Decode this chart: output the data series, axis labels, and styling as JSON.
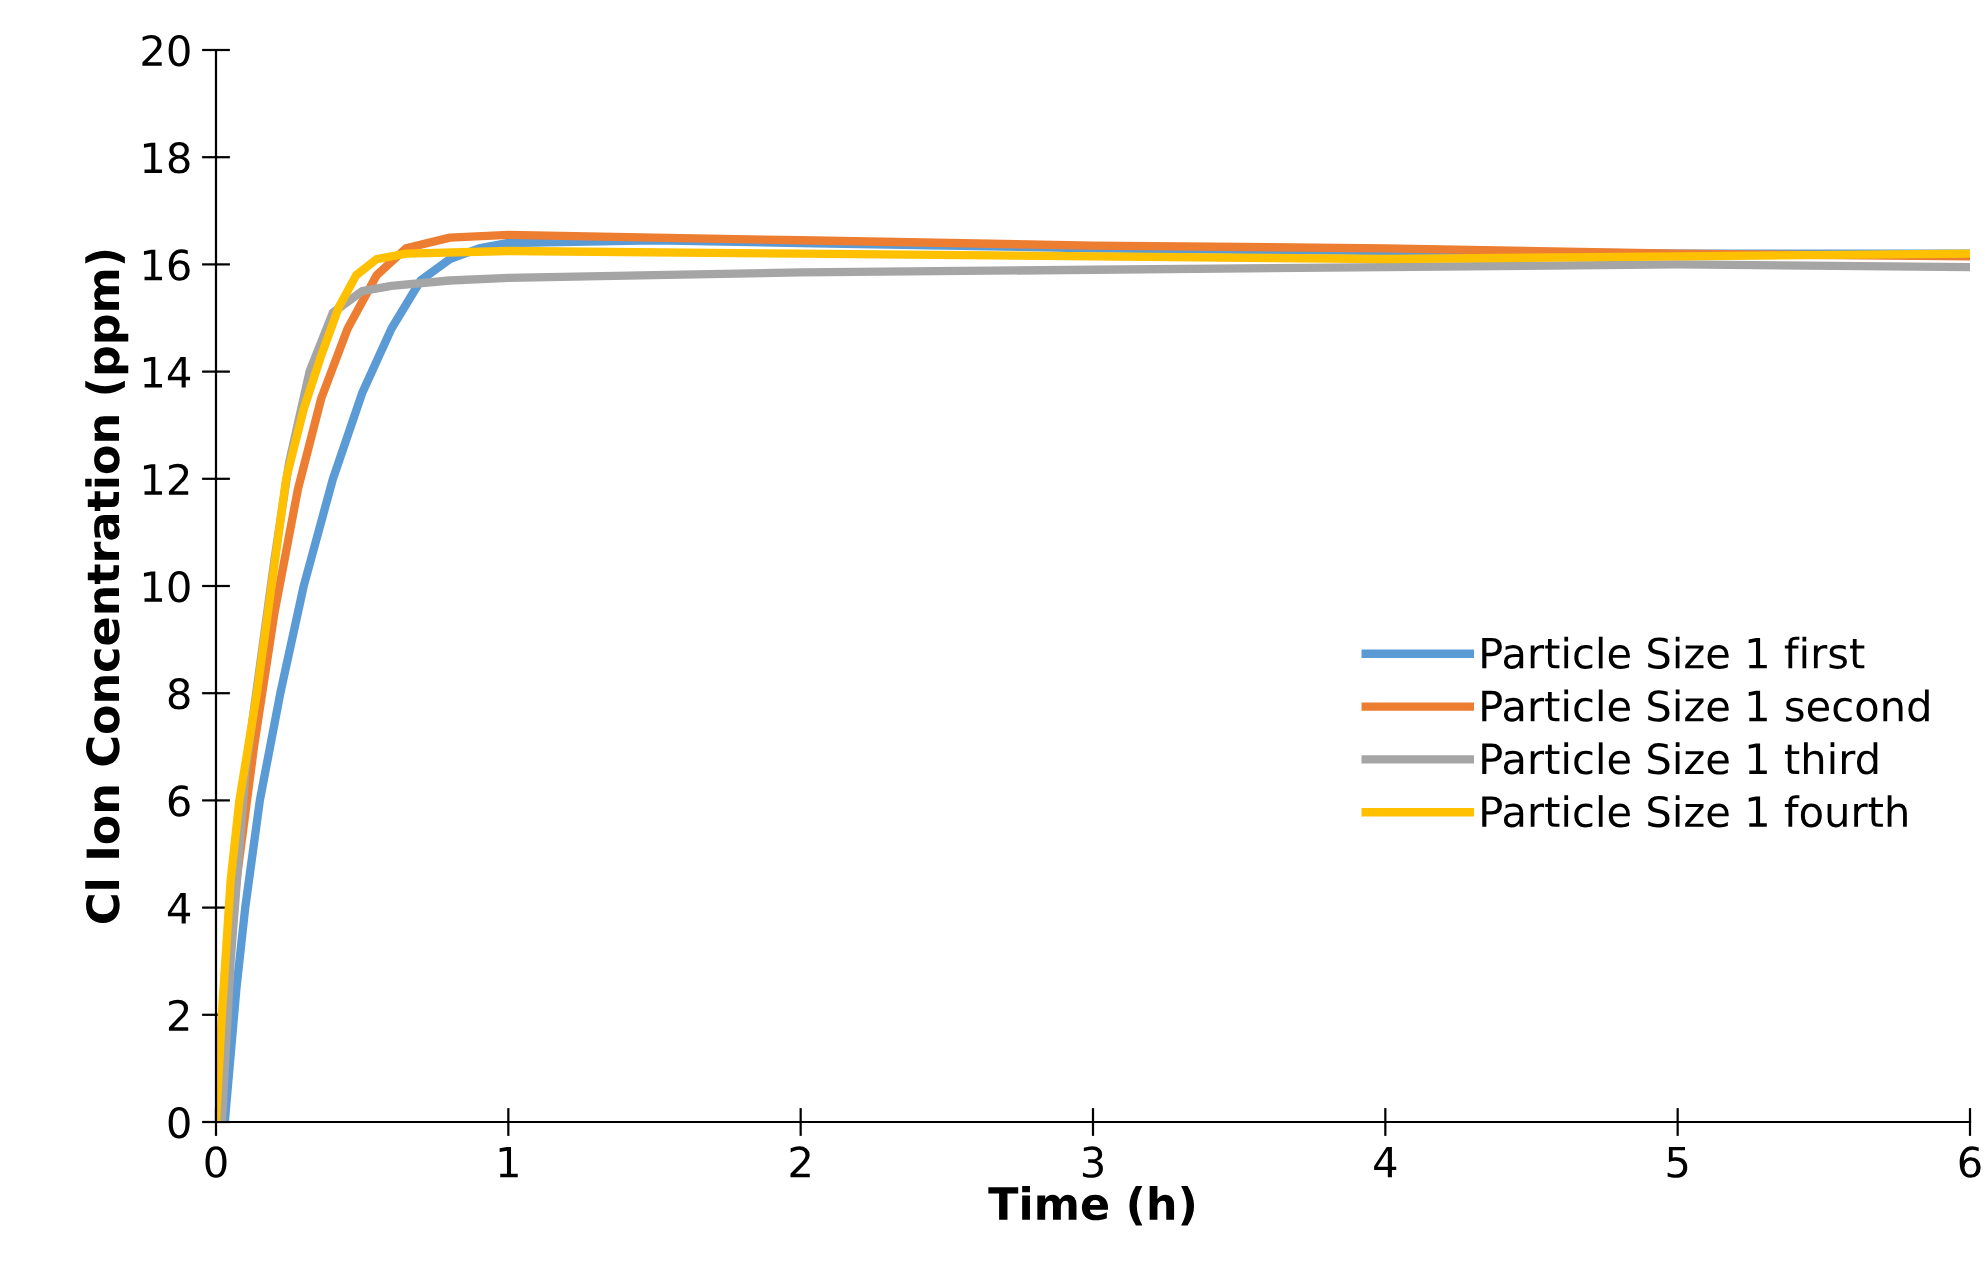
{
  "chart_data": {
    "type": "line",
    "xlabel": "Time (h)",
    "ylabel": "Cl Ion Concentration (ppm)",
    "xlim": [
      0,
      6
    ],
    "xticks": [
      0,
      1,
      2,
      3,
      4,
      5,
      6
    ],
    "ylim": [
      0,
      20
    ],
    "yticks": [
      0,
      2,
      4,
      6,
      8,
      10,
      12,
      14,
      16,
      18,
      20
    ],
    "grid": false,
    "legend": "right",
    "marker": "none",
    "line_style": "solid",
    "series": [
      {
        "name": "Particle Size 1 first",
        "color": "#5b9bd5",
        "x": [
          0.03,
          0.07,
          0.1,
          0.15,
          0.22,
          0.3,
          0.4,
          0.5,
          0.6,
          0.7,
          0.8,
          0.9,
          1,
          1.5,
          2,
          3,
          4,
          5,
          6
        ],
        "values": [
          0,
          2.5,
          4,
          6,
          8,
          10,
          12,
          13.6,
          14.8,
          15.7,
          16.1,
          16.3,
          16.4,
          16.45,
          16.4,
          16.3,
          16.25,
          16.2,
          16.2
        ]
      },
      {
        "name": "Particle Size 1 second",
        "color": "#ed7d31",
        "x": [
          0,
          0.03,
          0.07,
          0.13,
          0.2,
          0.28,
          0.36,
          0.45,
          0.55,
          0.65,
          0.8,
          1,
          1.5,
          2,
          3,
          4,
          5,
          6
        ],
        "values": [
          0,
          2,
          4.5,
          7,
          9.5,
          11.8,
          13.5,
          14.8,
          15.8,
          16.3,
          16.5,
          16.55,
          16.5,
          16.45,
          16.35,
          16.3,
          16.2,
          16.15
        ]
      },
      {
        "name": "Particle Size 1 third",
        "color": "#a5a5a5",
        "x": [
          0.02,
          0.05,
          0.1,
          0.15,
          0.2,
          0.25,
          0.32,
          0.4,
          0.5,
          0.6,
          0.8,
          1,
          1.5,
          2,
          3,
          4,
          5,
          6
        ],
        "values": [
          0,
          3,
          6.5,
          8.5,
          10.5,
          12.3,
          14,
          15.1,
          15.5,
          15.6,
          15.7,
          15.75,
          15.8,
          15.85,
          15.9,
          15.95,
          16,
          15.95
        ]
      },
      {
        "name": "Particle Size 1 fourth",
        "color": "#ffc000",
        "x": [
          0,
          0.02,
          0.05,
          0.08,
          0.14,
          0.19,
          0.24,
          0.3,
          0.36,
          0.42,
          0.48,
          0.55,
          0.65,
          1,
          2,
          3,
          4,
          5,
          6
        ],
        "values": [
          0,
          2,
          4.5,
          6,
          8,
          10,
          12,
          13.3,
          14.3,
          15.2,
          15.8,
          16.1,
          16.2,
          16.25,
          16.2,
          16.15,
          16.1,
          16.15,
          16.2
        ]
      }
    ]
  }
}
